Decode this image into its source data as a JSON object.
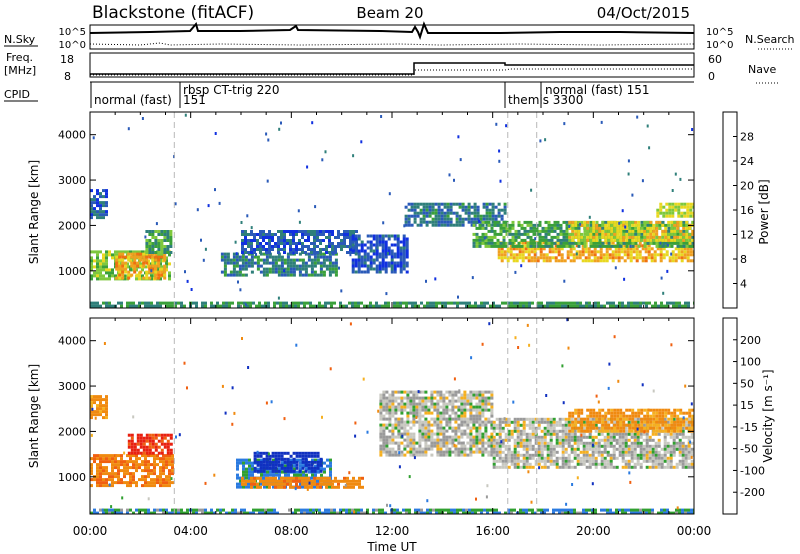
{
  "header": {
    "title": "Blackstone (fitACF)",
    "beam": "Beam 20",
    "date": "04/Oct/2015"
  },
  "noise_panel": {
    "left_label": "N.Sky",
    "right_label": "N.Search",
    "left_ticks": [
      "10^5",
      "10^0"
    ],
    "right_ticks": [
      "10^5",
      "10^0"
    ]
  },
  "freq_panel": {
    "left_label_1": "Freq.",
    "left_label_2": "[MHz]",
    "left_ticks": [
      "18",
      "8"
    ],
    "right_label": "Nave",
    "right_ticks": [
      "60",
      "0"
    ]
  },
  "cpid_panel": {
    "label": "CPID",
    "segments": [
      {
        "name": "normal (fast)",
        "start": 0.0,
        "code": ""
      },
      {
        "name": "rbsp CT-trig 220",
        "start": 3.35,
        "code": "151"
      },
      {
        "name": "themis 3300",
        "start": 16.6,
        "code": ""
      },
      {
        "name": "normal (fast) 151",
        "start": 17.75,
        "code": ""
      }
    ]
  },
  "panels": {
    "power": {
      "ylabel": "Slant Range [km]",
      "cbar_label": "Power [dB]"
    },
    "velocity": {
      "ylabel": "Slant Range [km]",
      "cbar_label": "Velocity [m s⁻¹]"
    }
  },
  "xaxis": {
    "label": "Time UT",
    "ticks": [
      "00:00",
      "04:00",
      "08:00",
      "12:00",
      "16:00",
      "20:00",
      "00:00"
    ]
  },
  "colors": {
    "power_scale": [
      "#1030e0",
      "#2a5ab8",
      "#2f7f7a",
      "#3aa03a",
      "#7ec83c",
      "#e8d820",
      "#f0a020",
      "#f07010",
      "#e82010"
    ],
    "velocity_scale": [
      "#e82010",
      "#f06010",
      "#f08a10",
      "#f6b020",
      "#c8c8c0",
      "#9a9a9a",
      "#30a030",
      "#2a7ae0",
      "#1030c0"
    ],
    "marker_line": "#b8b8b8"
  },
  "chart_data": [
    {
      "type": "heatmap",
      "title": "Power",
      "xlabel": "Time UT",
      "ylabel": "Slant Range [km]",
      "xlim": [
        0,
        24
      ],
      "ylim": [
        180,
        4500
      ],
      "yticks": [
        1000,
        2000,
        3000,
        4000
      ],
      "colorbar": {
        "label": "Power [dB]",
        "range": [
          0,
          32
        ],
        "ticks": [
          4,
          8,
          12,
          16,
          20,
          24,
          28
        ]
      },
      "regions": [
        {
          "t": [
            0.0,
            3.2
          ],
          "r": [
            800,
            1450
          ],
          "power": 18
        },
        {
          "t": [
            1.0,
            3.0
          ],
          "r": [
            850,
            1400
          ],
          "power": 26
        },
        {
          "t": [
            2.2,
            3.2
          ],
          "r": [
            1400,
            1900
          ],
          "power": 14
        },
        {
          "t": [
            0.0,
            0.7
          ],
          "r": [
            2200,
            2800
          ],
          "power": 6
        },
        {
          "t": [
            5.2,
            9.8
          ],
          "r": [
            900,
            1400
          ],
          "power": 10
        },
        {
          "t": [
            6.0,
            10.6
          ],
          "r": [
            1400,
            1900
          ],
          "power": 6
        },
        {
          "t": [
            10.4,
            12.6
          ],
          "r": [
            1000,
            1800
          ],
          "power": 5
        },
        {
          "t": [
            12.5,
            16.5
          ],
          "r": [
            2000,
            2500
          ],
          "power": 9
        },
        {
          "t": [
            16.2,
            24.0
          ],
          "r": [
            1200,
            1650
          ],
          "power": 25
        },
        {
          "t": [
            15.2,
            24.0
          ],
          "r": [
            1550,
            2100
          ],
          "power": 14
        },
        {
          "t": [
            19.0,
            24.0
          ],
          "r": [
            1700,
            2100
          ],
          "power": 22
        },
        {
          "t": [
            22.5,
            24.0
          ],
          "r": [
            2200,
            2500
          ],
          "power": 20
        },
        {
          "t": [
            0.0,
            24.0
          ],
          "r": [
            180,
            320
          ],
          "power": 12
        }
      ]
    },
    {
      "type": "heatmap",
      "title": "Velocity",
      "xlabel": "Time UT",
      "ylabel": "Slant Range [km]",
      "xlim": [
        0,
        24
      ],
      "ylim": [
        180,
        4500
      ],
      "yticks": [
        1000,
        2000,
        3000,
        4000
      ],
      "colorbar": {
        "label": "Velocity [m s⁻¹]",
        "range": [
          -250,
          250
        ],
        "ticks": [
          200,
          100,
          50,
          15,
          -15,
          -50,
          -100,
          -200
        ]
      },
      "regions": [
        {
          "t": [
            0.0,
            3.3
          ],
          "r": [
            800,
            1500
          ],
          "velocity": -70
        },
        {
          "t": [
            1.5,
            3.2
          ],
          "r": [
            1500,
            1950
          ],
          "velocity": -160
        },
        {
          "t": [
            0.0,
            0.6
          ],
          "r": [
            2300,
            2800
          ],
          "velocity": -40
        },
        {
          "t": [
            5.8,
            9.6
          ],
          "r": [
            800,
            1400
          ],
          "velocity": 40
        },
        {
          "t": [
            6.5,
            9.2
          ],
          "r": [
            1100,
            1550
          ],
          "velocity": 120
        },
        {
          "t": [
            6.0,
            10.8
          ],
          "r": [
            750,
            1000
          ],
          "velocity": -60
        },
        {
          "t": [
            11.5,
            16.0
          ],
          "r": [
            1500,
            2900
          ],
          "velocity": 0
        },
        {
          "t": [
            16.0,
            24.0
          ],
          "r": [
            1200,
            2300
          ],
          "velocity": 0
        },
        {
          "t": [
            19.0,
            24.0
          ],
          "r": [
            2000,
            2500
          ],
          "velocity": -40
        },
        {
          "t": [
            0.0,
            24.0
          ],
          "r": [
            180,
            300
          ],
          "velocity": 30
        }
      ]
    }
  ]
}
